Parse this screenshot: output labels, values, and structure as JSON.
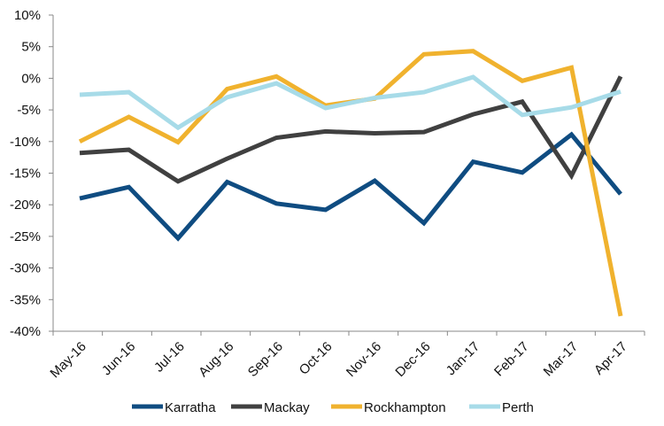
{
  "chart_data": {
    "type": "line",
    "title": "",
    "xlabel": "",
    "ylabel": "",
    "categories": [
      "May-16",
      "Jun-16",
      "Jul-16",
      "Aug-16",
      "Sep-16",
      "Oct-16",
      "Nov-16",
      "Dec-16",
      "Jan-17",
      "Feb-17",
      "Mar-17",
      "Apr-17"
    ],
    "y_ticks": [
      "10%",
      "5%",
      "0%",
      "-5%",
      "-10%",
      "-15%",
      "-20%",
      "-25%",
      "-30%",
      "-35%",
      "-40%"
    ],
    "y_tick_values": [
      10,
      5,
      0,
      -5,
      -10,
      -15,
      -20,
      -25,
      -30,
      -35,
      -40
    ],
    "ylim": [
      -40,
      10
    ],
    "unit": "%",
    "grid": false,
    "legend_position": "bottom",
    "series": [
      {
        "name": "Karratha",
        "color": "#0f4c81",
        "values": [
          -19,
          -17.2,
          -25.3,
          -16.4,
          -19.8,
          -20.8,
          -16.2,
          -22.9,
          -13.2,
          -14.9,
          -8.9,
          -18.3
        ]
      },
      {
        "name": "Mackay",
        "color": "#404040",
        "values": [
          -11.8,
          -11.3,
          -16.3,
          -12.7,
          -9.4,
          -8.4,
          -8.7,
          -8.5,
          -5.7,
          -3.7,
          -15.4,
          0.3
        ]
      },
      {
        "name": "Rockhampton",
        "color": "#f0b22e",
        "values": [
          -10,
          -6.1,
          -10.1,
          -1.7,
          0.3,
          -4.3,
          -3.2,
          3.8,
          4.3,
          -0.4,
          1.7,
          -37.6
        ]
      },
      {
        "name": "Perth",
        "color": "#a7dbe8",
        "values": [
          -2.6,
          -2.2,
          -7.8,
          -3,
          -0.8,
          -4.7,
          -3.1,
          -2.2,
          0.2,
          -5.8,
          -4.6,
          -2.1
        ]
      }
    ]
  }
}
